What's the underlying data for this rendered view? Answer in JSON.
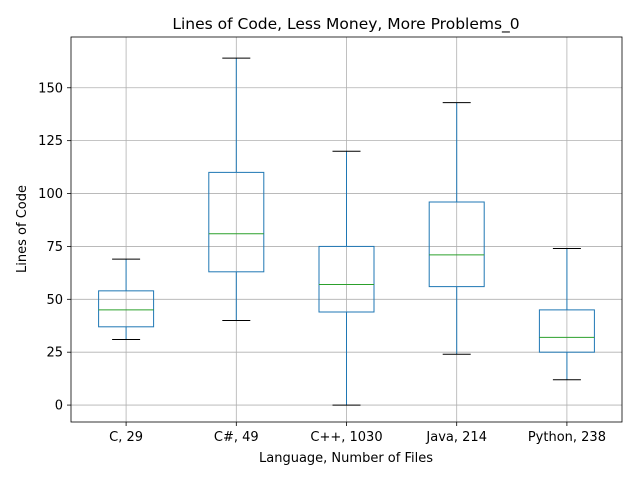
{
  "chart_data": {
    "type": "box",
    "title": "Lines of Code, Less Money, More Problems_0",
    "xlabel": "Language, Number of Files",
    "ylabel": "Lines of Code",
    "ylim": [
      -8,
      174
    ],
    "yticks": [
      0,
      25,
      50,
      75,
      100,
      125,
      150
    ],
    "grid": true,
    "categories": [
      "C, 29",
      "C#, 49",
      "C++, 1030",
      "Java, 214",
      "Python, 238"
    ],
    "boxes": [
      {
        "category": "C, 29",
        "whisker_low": 31,
        "q1": 37,
        "median": 45,
        "q3": 54,
        "whisker_high": 69
      },
      {
        "category": "C#, 49",
        "whisker_low": 40,
        "q1": 63,
        "median": 81,
        "q3": 110,
        "whisker_high": 164
      },
      {
        "category": "C++, 1030",
        "whisker_low": 0,
        "q1": 44,
        "median": 57,
        "q3": 75,
        "whisker_high": 120
      },
      {
        "category": "Java, 214",
        "whisker_low": 24,
        "q1": 56,
        "median": 71,
        "q3": 96,
        "whisker_high": 143
      },
      {
        "category": "Python, 238",
        "whisker_low": 12,
        "q1": 25,
        "median": 32,
        "q3": 45,
        "whisker_high": 74
      }
    ],
    "colors": {
      "box": "#1f77b4",
      "median": "#2ca02c",
      "cap": "#000000"
    }
  }
}
